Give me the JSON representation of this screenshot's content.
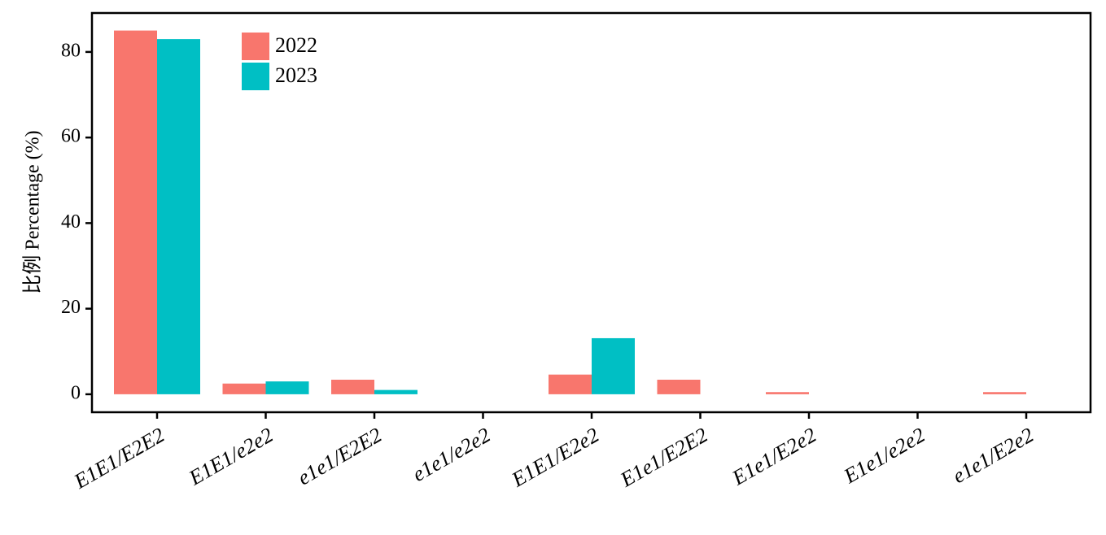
{
  "chart_data": {
    "type": "bar",
    "y_label": "比例 Percentage (%)",
    "categories": [
      "E1E1/E2E2",
      "E1E1/e2e2",
      "e1e1/E2E2",
      "e1e1/e2e2",
      "E1E1/E2e2",
      "E1e1/E2E2",
      "E1e1/E2e2",
      "E1e1/e2e2",
      "e1e1/E2e2"
    ],
    "series": [
      {
        "name": "2022",
        "color": "#F8766D",
        "values": [
          85,
          2.5,
          3.4,
          0,
          4.6,
          3.4,
          0.5,
          0,
          0.5
        ]
      },
      {
        "name": "2023",
        "color": "#00BFC4",
        "values": [
          83,
          3.0,
          1.0,
          0,
          13.1,
          0,
          0,
          0,
          0
        ]
      }
    ],
    "ylim": [
      -4.2,
      89.1
    ],
    "yticks": [
      0,
      20,
      40,
      60,
      80
    ],
    "legend": "upper-left"
  }
}
